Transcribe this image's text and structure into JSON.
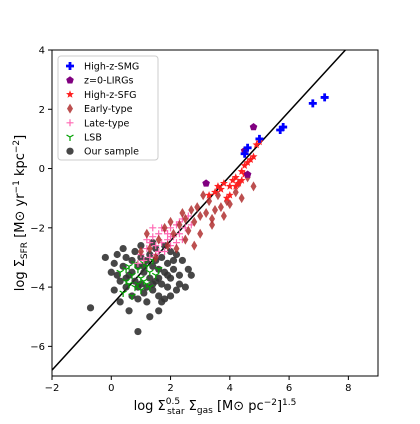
{
  "chart_data": {
    "type": "scatter",
    "xlabel": "log Σ^0.5_star Σ_gas [M⊙ pc⁻²]^1.5",
    "ylabel": "log Σ_SFR [M⊙ yr⁻¹ kpc⁻²]",
    "xlim": [
      -2,
      9
    ],
    "ylim": [
      -7,
      4
    ],
    "xticks": [
      -2,
      0,
      2,
      4,
      6,
      8
    ],
    "yticks": [
      -6,
      -4,
      -2,
      0,
      2,
      4
    ],
    "grid": false,
    "legend_position": "top-left",
    "fit_line": {
      "points": [
        [
          -2,
          -6.8
        ],
        [
          7.9,
          4
        ]
      ],
      "color": "#000000"
    },
    "series": [
      {
        "name": "High-z-SMG",
        "marker": "plus-bold",
        "color": "#0000ff",
        "points": [
          [
            4.5,
            0.5
          ],
          [
            5.0,
            1.0
          ],
          [
            5.7,
            1.3
          ],
          [
            5.8,
            1.4
          ],
          [
            6.8,
            2.2
          ],
          [
            7.2,
            2.4
          ],
          [
            4.6,
            0.7
          ]
        ]
      },
      {
        "name": "z=0-LIRGs",
        "marker": "pentagon",
        "color": "#800080",
        "points": [
          [
            4.8,
            1.4
          ],
          [
            3.2,
            -0.5
          ],
          [
            4.5,
            0.6
          ],
          [
            4.6,
            -0.2
          ]
        ]
      },
      {
        "name": "High-z-SFG",
        "marker": "star",
        "color": "#ff2020",
        "points": [
          [
            3.3,
            -0.9
          ],
          [
            3.5,
            -0.8
          ],
          [
            3.6,
            -0.6
          ],
          [
            3.8,
            -0.5
          ],
          [
            4.0,
            -0.6
          ],
          [
            4.1,
            -0.4
          ],
          [
            4.2,
            -0.3
          ],
          [
            4.3,
            -0.5
          ],
          [
            4.4,
            -0.1
          ],
          [
            4.5,
            0.1
          ],
          [
            4.6,
            0.2
          ],
          [
            4.7,
            0.3
          ],
          [
            4.8,
            0.4
          ],
          [
            4.9,
            0.8
          ],
          [
            5.0,
            0.9
          ],
          [
            3.7,
            -0.7
          ],
          [
            4.2,
            -0.6
          ],
          [
            4.4,
            -0.4
          ],
          [
            4.0,
            -0.9
          ],
          [
            3.9,
            -1.0
          ],
          [
            4.5,
            -0.2
          ]
        ]
      },
      {
        "name": "Early-type",
        "marker": "diamond",
        "color": "#b03030",
        "points": [
          [
            1.6,
            -2.4
          ],
          [
            1.8,
            -2.0
          ],
          [
            2.0,
            -1.8
          ],
          [
            2.1,
            -2.2
          ],
          [
            2.3,
            -1.9
          ],
          [
            2.4,
            -1.5
          ],
          [
            2.5,
            -1.7
          ],
          [
            2.6,
            -2.1
          ],
          [
            2.7,
            -1.4
          ],
          [
            2.8,
            -1.8
          ],
          [
            2.9,
            -1.3
          ],
          [
            3.0,
            -1.6
          ],
          [
            3.1,
            -0.9
          ],
          [
            3.2,
            -1.5
          ],
          [
            3.3,
            -1.1
          ],
          [
            3.4,
            -1.9
          ],
          [
            3.5,
            -1.4
          ],
          [
            3.6,
            -0.9
          ],
          [
            3.7,
            -1.3
          ],
          [
            3.8,
            -1.6
          ],
          [
            3.9,
            -1.1
          ],
          [
            4.0,
            -1.2
          ],
          [
            4.2,
            -0.8
          ],
          [
            4.3,
            -0.5
          ],
          [
            4.4,
            -1.0
          ],
          [
            4.6,
            -0.3
          ],
          [
            4.8,
            -0.6
          ],
          [
            1.3,
            -2.7
          ],
          [
            1.5,
            -3.0
          ],
          [
            1.9,
            -2.6
          ],
          [
            2.2,
            -2.7
          ],
          [
            2.5,
            -2.4
          ],
          [
            3.0,
            -2.2
          ],
          [
            1.2,
            -2.2
          ],
          [
            1.0,
            -2.8
          ],
          [
            2.8,
            -2.6
          ],
          [
            3.4,
            -1.7
          ]
        ]
      },
      {
        "name": "Late-type",
        "marker": "plus",
        "color": "#ff69b4",
        "points": [
          [
            1.0,
            -2.9
          ],
          [
            1.2,
            -2.7
          ],
          [
            1.3,
            -2.5
          ],
          [
            1.4,
            -2.3
          ],
          [
            1.5,
            -2.6
          ],
          [
            1.6,
            -2.2
          ],
          [
            1.7,
            -2.5
          ],
          [
            1.8,
            -2.1
          ],
          [
            1.9,
            -2.4
          ],
          [
            2.0,
            -2.0
          ],
          [
            2.1,
            -2.3
          ],
          [
            2.2,
            -1.9
          ],
          [
            2.3,
            -2.2
          ],
          [
            2.4,
            -1.7
          ],
          [
            1.1,
            -3.1
          ],
          [
            1.5,
            -2.9
          ],
          [
            1.8,
            -2.8
          ],
          [
            2.0,
            -2.6
          ],
          [
            2.5,
            -2.0
          ],
          [
            2.6,
            -1.6
          ],
          [
            1.3,
            -3.0
          ],
          [
            1.7,
            -2.0
          ],
          [
            2.2,
            -2.5
          ],
          [
            1.6,
            -2.8
          ],
          [
            1.9,
            -2.2
          ],
          [
            2.4,
            -2.4
          ],
          [
            0.9,
            -3.2
          ],
          [
            1.4,
            -2.0
          ],
          [
            2.0,
            -2.3
          ],
          [
            1.2,
            -2.4
          ],
          [
            2.3,
            -1.8
          ],
          [
            2.7,
            -1.9
          ]
        ]
      },
      {
        "name": "LSB",
        "marker": "tri",
        "color": "#00a000",
        "points": [
          [
            0.3,
            -3.5
          ],
          [
            0.5,
            -3.8
          ],
          [
            0.6,
            -3.3
          ],
          [
            0.7,
            -3.6
          ],
          [
            0.8,
            -4.0
          ],
          [
            0.9,
            -3.4
          ],
          [
            1.0,
            -3.7
          ],
          [
            1.1,
            -3.2
          ],
          [
            1.2,
            -3.9
          ],
          [
            1.3,
            -3.5
          ],
          [
            1.4,
            -3.1
          ],
          [
            0.4,
            -4.2
          ],
          [
            0.7,
            -4.3
          ],
          [
            1.0,
            -4.1
          ],
          [
            1.2,
            -3.3
          ],
          [
            0.8,
            -3.2
          ],
          [
            1.5,
            -3.6
          ],
          [
            0.6,
            -3.9
          ],
          [
            1.1,
            -3.8
          ],
          [
            0.5,
            -3.4
          ],
          [
            1.3,
            -4.0
          ],
          [
            0.9,
            -3.9
          ],
          [
            1.6,
            -3.4
          ]
        ]
      },
      {
        "name": "Our sample",
        "marker": "circle",
        "color": "#333333",
        "points": [
          [
            -0.7,
            -4.7
          ],
          [
            -0.2,
            -3.0
          ],
          [
            0.0,
            -3.5
          ],
          [
            0.1,
            -4.1
          ],
          [
            0.2,
            -2.9
          ],
          [
            0.3,
            -3.8
          ],
          [
            0.4,
            -3.3
          ],
          [
            0.5,
            -4.0
          ],
          [
            0.5,
            -3.0
          ],
          [
            0.6,
            -3.6
          ],
          [
            0.7,
            -4.3
          ],
          [
            0.7,
            -3.1
          ],
          [
            0.8,
            -3.8
          ],
          [
            0.8,
            -2.8
          ],
          [
            0.9,
            -4.4
          ],
          [
            0.9,
            -3.3
          ],
          [
            1.0,
            -3.9
          ],
          [
            1.0,
            -3.0
          ],
          [
            1.1,
            -4.2
          ],
          [
            1.1,
            -3.5
          ],
          [
            1.2,
            -3.1
          ],
          [
            1.2,
            -4.5
          ],
          [
            1.3,
            -3.7
          ],
          [
            1.3,
            -2.9
          ],
          [
            1.4,
            -4.1
          ],
          [
            1.4,
            -3.3
          ],
          [
            1.5,
            -3.8
          ],
          [
            1.5,
            -2.7
          ],
          [
            1.6,
            -4.3
          ],
          [
            1.6,
            -3.4
          ],
          [
            1.7,
            -3.0
          ],
          [
            1.7,
            -3.9
          ],
          [
            1.8,
            -3.5
          ],
          [
            1.8,
            -4.4
          ],
          [
            1.9,
            -3.2
          ],
          [
            1.9,
            -4.0
          ],
          [
            2.0,
            -3.7
          ],
          [
            2.0,
            -2.8
          ],
          [
            2.1,
            -3.4
          ],
          [
            2.2,
            -4.1
          ],
          [
            2.3,
            -3.6
          ],
          [
            2.4,
            -3.1
          ],
          [
            2.5,
            -4.0
          ],
          [
            2.6,
            -3.4
          ],
          [
            0.3,
            -4.5
          ],
          [
            0.6,
            -4.8
          ],
          [
            0.9,
            -5.5
          ],
          [
            1.3,
            -5.0
          ],
          [
            1.6,
            -4.8
          ],
          [
            0.1,
            -3.2
          ],
          [
            1.0,
            -2.6
          ],
          [
            1.4,
            -2.5
          ],
          [
            1.8,
            -2.6
          ],
          [
            2.2,
            -2.9
          ],
          [
            0.4,
            -2.7
          ],
          [
            1.2,
            -4.0
          ],
          [
            0.7,
            -3.5
          ],
          [
            1.5,
            -3.1
          ],
          [
            1.7,
            -4.5
          ],
          [
            2.0,
            -4.3
          ],
          [
            2.3,
            -3.9
          ],
          [
            0.2,
            -3.6
          ],
          [
            0.9,
            -4.0
          ],
          [
            1.1,
            -3.3
          ],
          [
            1.6,
            -3.7
          ],
          [
            1.9,
            -3.6
          ],
          [
            0.5,
            -3.7
          ],
          [
            1.4,
            -3.9
          ],
          [
            2.1,
            -3.1
          ],
          [
            2.7,
            -3.6
          ]
        ]
      }
    ]
  }
}
